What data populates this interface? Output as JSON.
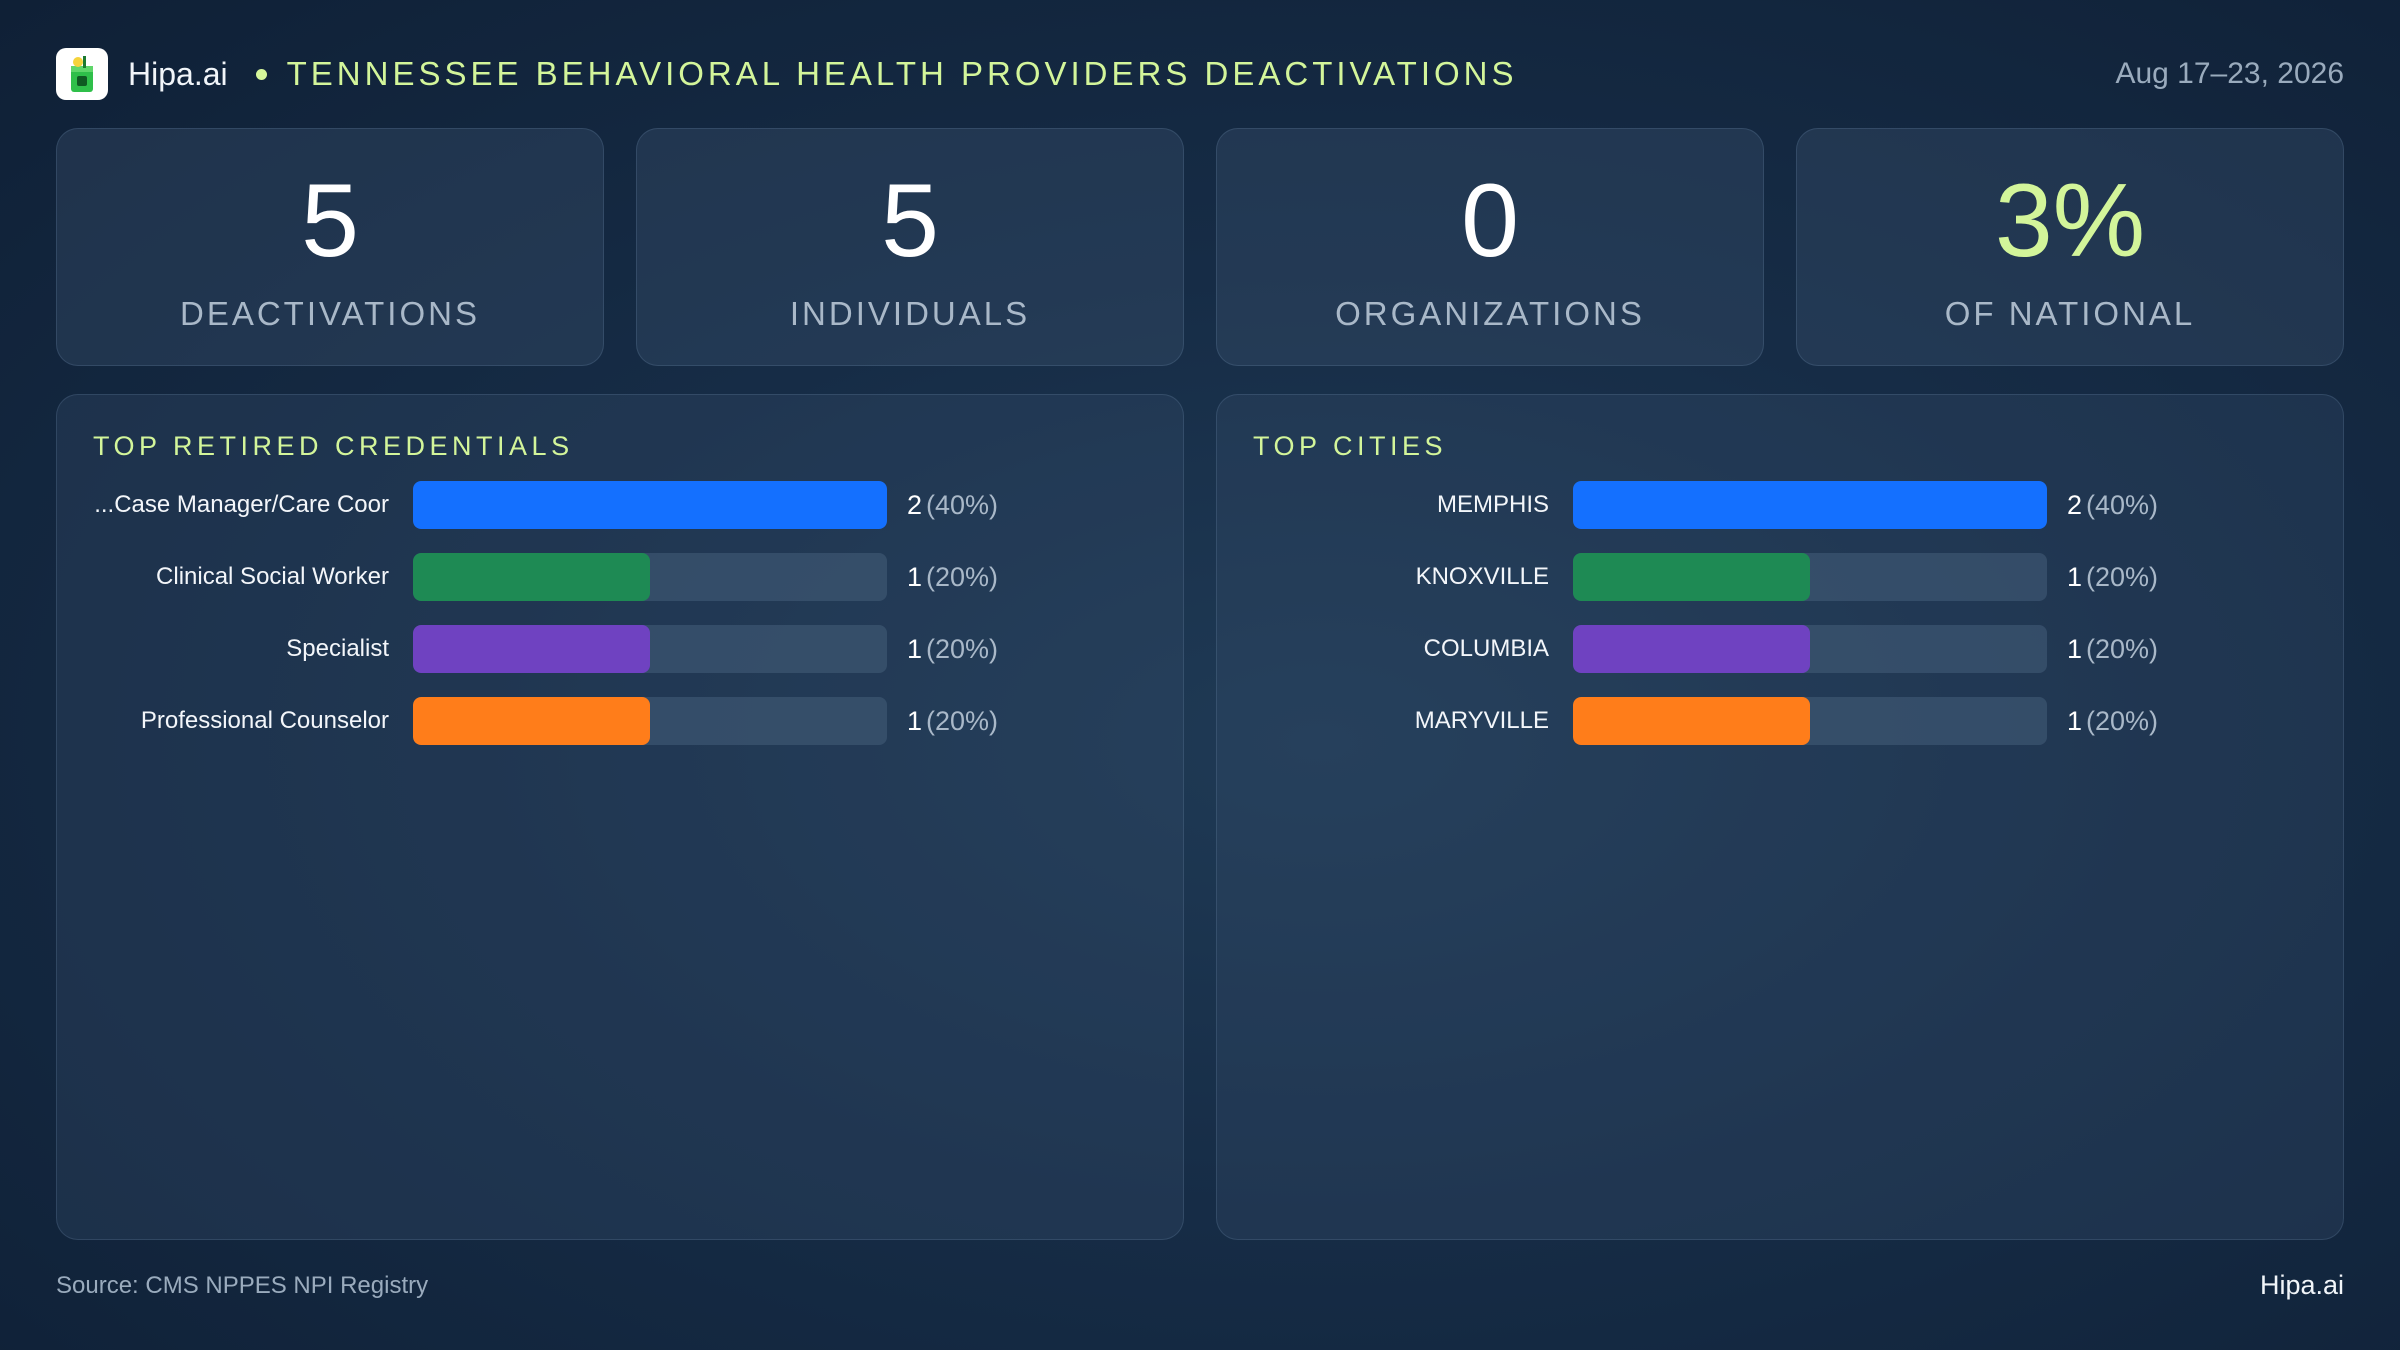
{
  "header": {
    "brand": "Hipa.ai",
    "title": "TENNESSEE BEHAVIORAL HEALTH PROVIDERS DEACTIVATIONS",
    "date": "Aug 17–23, 2026"
  },
  "kpis": [
    {
      "value": "5",
      "label": "DEACTIVATIONS"
    },
    {
      "value": "5",
      "label": "INDIVIDUALS"
    },
    {
      "value": "0",
      "label": "ORGANIZATIONS"
    },
    {
      "value": "3%",
      "label": "OF NATIONAL"
    }
  ],
  "credentials_panel": {
    "title": "TOP RETIRED CREDENTIALS",
    "items": [
      {
        "label": "Case Manager/Care Coor...",
        "count": "2",
        "pct": "(40%)",
        "fraction": 1.0,
        "color": "#1470ff"
      },
      {
        "label": "Clinical Social Worker",
        "count": "1",
        "pct": "(20%)",
        "fraction": 0.5,
        "color": "#1e8a54"
      },
      {
        "label": "Specialist",
        "count": "1",
        "pct": "(20%)",
        "fraction": 0.5,
        "color": "#6f42c1"
      },
      {
        "label": "Professional Counselor",
        "count": "1",
        "pct": "(20%)",
        "fraction": 0.5,
        "color": "#ff7d1a"
      }
    ]
  },
  "cities_panel": {
    "title": "TOP CITIES",
    "items": [
      {
        "label": "MEMPHIS",
        "count": "2",
        "pct": "(40%)",
        "fraction": 1.0,
        "color": "#1470ff"
      },
      {
        "label": "KNOXVILLE",
        "count": "1",
        "pct": "(20%)",
        "fraction": 0.5,
        "color": "#1e8a54"
      },
      {
        "label": "COLUMBIA",
        "count": "1",
        "pct": "(20%)",
        "fraction": 0.5,
        "color": "#6f42c1"
      },
      {
        "label": "MARYVILLE",
        "count": "1",
        "pct": "(20%)",
        "fraction": 0.5,
        "color": "#ff7d1a"
      }
    ]
  },
  "footer": {
    "source": "Source: CMS NPPES NPI Registry",
    "brand": "Hipa.ai"
  },
  "colors": {
    "accent": "#d3f59a",
    "background": "#162c46"
  }
}
